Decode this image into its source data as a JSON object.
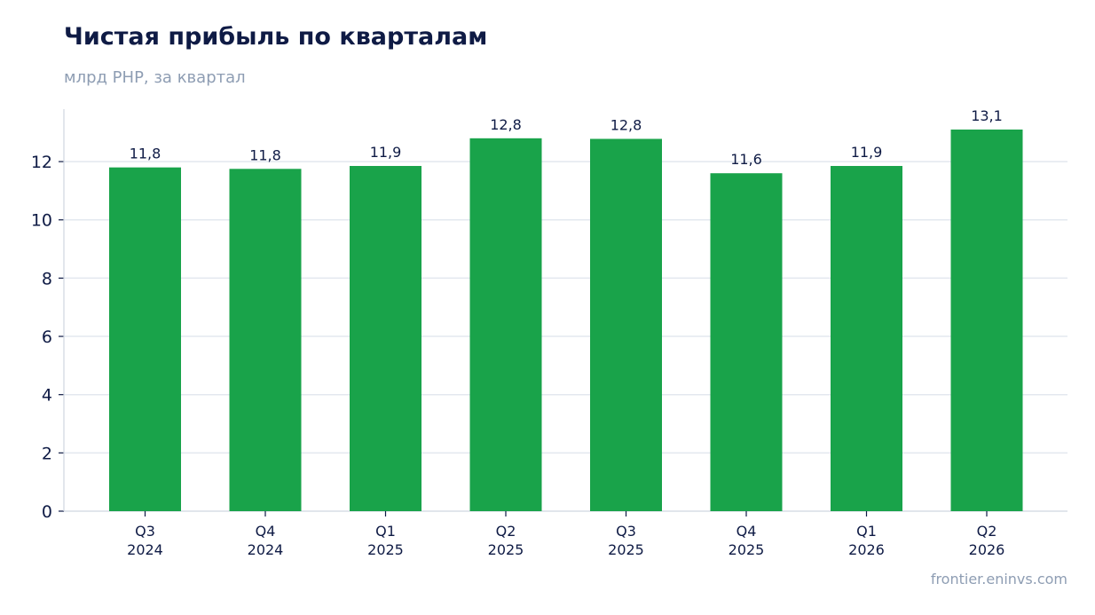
{
  "header": {
    "title": "Чистая прибыль по кварталам",
    "subtitle": "млрд РНР, за квартал"
  },
  "footer": {
    "source": "frontier.eninvs.com"
  },
  "colors": {
    "bar": "#19a34a",
    "grid": "#e3e8ef",
    "axis": "#cfd6e0",
    "text": "#0f1b45",
    "muted": "#8e9db3"
  },
  "chart_data": {
    "type": "bar",
    "title": "Чистая прибыль по кварталам",
    "subtitle": "млрд РНР, за квартал",
    "categories": [
      [
        "Q3",
        "2024"
      ],
      [
        "Q4",
        "2024"
      ],
      [
        "Q1",
        "2025"
      ],
      [
        "Q2",
        "2025"
      ],
      [
        "Q3",
        "2025"
      ],
      [
        "Q4",
        "2025"
      ],
      [
        "Q1",
        "2026"
      ],
      [
        "Q2",
        "2026"
      ]
    ],
    "values": [
      11.8,
      11.75,
      11.85,
      12.8,
      12.78,
      11.6,
      11.85,
      13.1
    ],
    "data_labels": [
      "11,8",
      "11,8",
      "11,9",
      "12,8",
      "12,8",
      "11,6",
      "11,9",
      "13,1"
    ],
    "ylim": [
      0,
      13.8
    ],
    "yticks": [
      0,
      2,
      4,
      6,
      8,
      10,
      12
    ],
    "grid": true,
    "legend": "none"
  }
}
